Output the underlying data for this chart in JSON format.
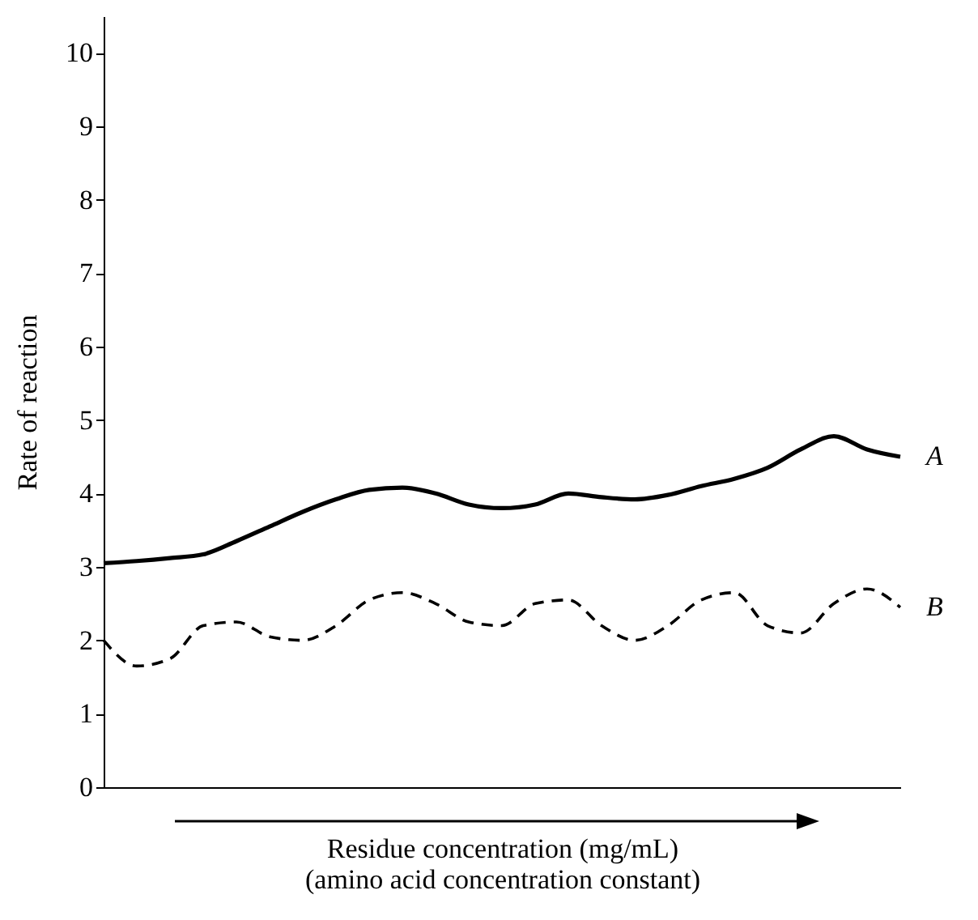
{
  "chart_data": {
    "type": "line",
    "xlabel": "Residue concentration (mg/mL)\n(amino acid concentration constant)",
    "ylabel": "Rate of reaction",
    "categories": [
      null,
      null,
      null,
      null,
      null,
      null,
      null,
      null,
      null,
      null,
      null,
      null,
      null,
      null,
      null,
      null,
      null,
      null,
      null,
      null,
      null,
      null,
      null,
      null,
      null
    ],
    "ylim": [
      0,
      10.5
    ],
    "yticks": [
      0,
      1,
      2,
      3,
      4,
      5,
      6,
      7,
      8,
      9,
      10
    ],
    "grid": false,
    "marker": "none",
    "series": [
      {
        "name": "A",
        "color": "#000000",
        "line_style": "solid",
        "values": [
          3.05,
          3.08,
          3.12,
          3.17,
          3.35,
          3.55,
          3.75,
          3.92,
          4.05,
          4.08,
          4.0,
          3.85,
          3.8,
          3.85,
          4.0,
          3.95,
          3.92,
          3.98,
          4.1,
          4.2,
          4.35,
          4.6,
          4.78,
          4.6,
          4.5
        ]
      },
      {
        "name": "B",
        "color": "#000000",
        "line_style": "dashed",
        "values": [
          2.0,
          1.65,
          1.75,
          2.2,
          2.25,
          2.05,
          2.0,
          2.2,
          2.55,
          2.65,
          2.5,
          2.25,
          2.2,
          2.5,
          2.55,
          2.2,
          2.0,
          2.2,
          2.55,
          2.65,
          2.2,
          2.1,
          2.5,
          2.7,
          2.45
        ]
      }
    ]
  }
}
